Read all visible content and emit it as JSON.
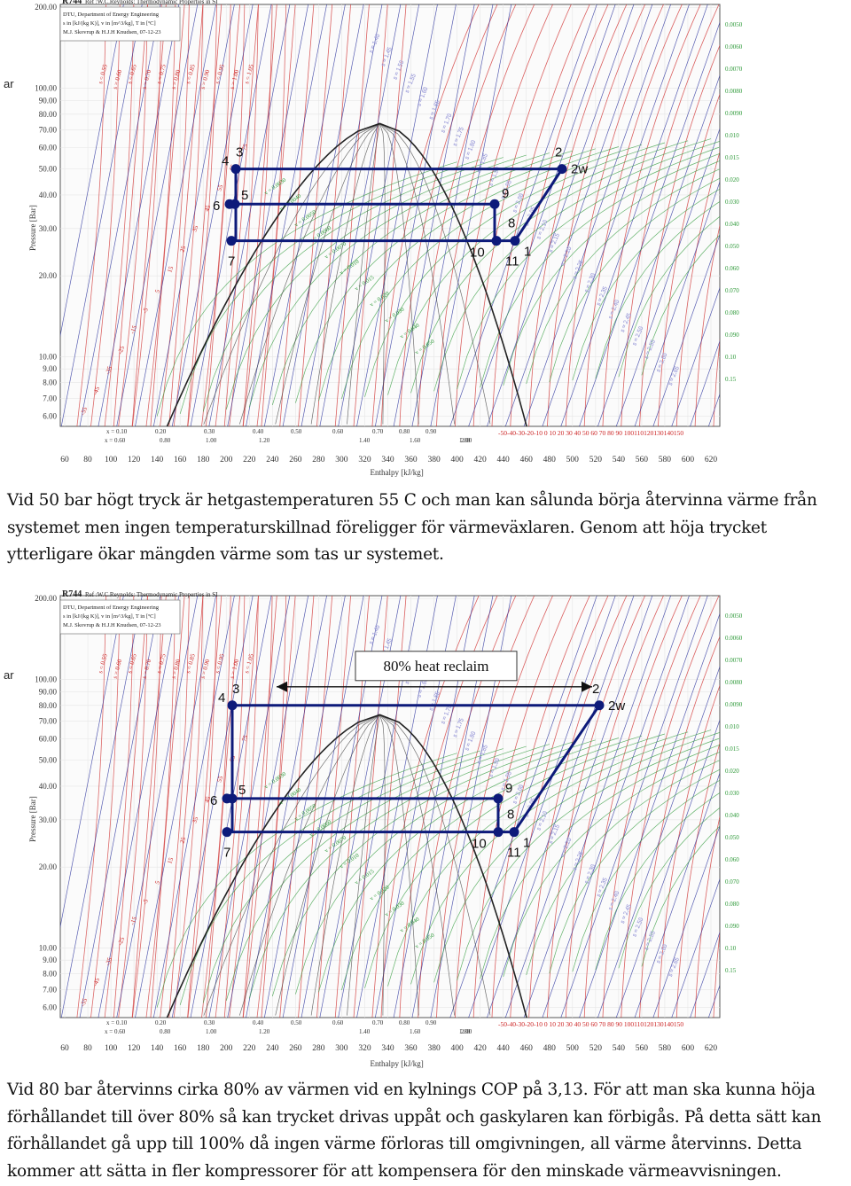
{
  "page": {
    "paragraph_1": "Vid 50 bar högt tryck är hetgastemperaturen 55 C och man kan sålunda börja återvinna värme från systemet men ingen temperaturskillnad föreligger för värmeväxlaren. Genom att höja trycket ytterligare ökar mängden värme som tas ur systemet.",
    "paragraph_2": "Vid 80 bar återvinns cirka 80% av värmen vid en kylnings COP på 3,13. För att man ska kunna höja förhållandet till över 80% så kan trycket drivas uppåt och gaskylaren kan förbigås. På detta sätt kan förhållandet gå upp till 100% då ingen värme förloras till omgivningen, all värme återvinns. Detta kommer att sätta in fler kompressorer för att kompensera för den minskade värmeavvisningen."
  },
  "colors": {
    "cycle": "#0d1a7a",
    "isotherm": "#d23a3a",
    "isentrope": "#222a9a",
    "isochore": "#2f9a3a",
    "quality": "#333333",
    "dome": "#222222",
    "annotation_red": "#cc2222",
    "annotation_green": "#2f9a3a"
  },
  "chart_common": {
    "header_lines": [
      "DTU, Department of Energy Engineering",
      "s in [kJ/(kg K)], v in [m^3/kg], T in [ºC]",
      "M.J. Skovrup & H.J.H Knudsen, 07-12-23"
    ],
    "y_axis_label": "Pressure [Bar]",
    "x_axis_label": "Enthalpy [kJ/kg]",
    "left_edge_label": "ar",
    "y_ticks": [
      "6.00",
      "7.00",
      "8.00",
      "9.00",
      "10.00",
      "20.00",
      "30.00",
      "40.00",
      "50.00",
      "60.00",
      "70.00",
      "80.00",
      "90.00",
      "100.00",
      "200.00"
    ],
    "x_ticks": [
      "60",
      "80",
      "100",
      "120",
      "140",
      "160",
      "180",
      "200",
      "220",
      "240",
      "260",
      "280",
      "300",
      "320",
      "340",
      "360",
      "380",
      "400",
      "420",
      "440",
      "460",
      "480",
      "500",
      "520",
      "540",
      "560",
      "580",
      "600",
      "620"
    ],
    "quality_labels": [
      "x = 0.10",
      "x = 0.60",
      "0.20",
      "0.80",
      "0.30",
      "1.00",
      "0.40",
      "1.20",
      "0.50",
      "0.60",
      "1.40",
      "0.70",
      "1.60",
      "0.80",
      "1.80",
      "0.90",
      "2.00"
    ],
    "temperature_scale_label": "-50-40-30-20-10  0  10  20  30  40  50  60  70  80  90 100110120130140150",
    "entropy_labels": [
      "s = 0.55",
      "s = 0.60",
      "s = 0.65",
      "s = 0.70",
      "s = 0.75",
      "s = 0.80",
      "s = 0.85",
      "s = 0.90",
      "s = 0.95",
      "s = 1.00",
      "s = 1.05"
    ],
    "volume_labels": [
      "0.0050",
      "0.0060",
      "0.0070",
      "0.0080",
      "0.0090",
      "0.010",
      "0.015",
      "0.020",
      "0.030",
      "0.040",
      "0.050",
      "0.060",
      "0.070",
      "0.080",
      "0.090",
      "0.10",
      "0.15"
    ],
    "mid_volume_labels": [
      "v = 0.0030",
      "v = 0.0040",
      "v = 0.0050",
      "v = 0.0060",
      "v = 0.0070",
      "v = 0.010",
      "v = 0.015",
      "v = 0.020",
      "v = 0.030",
      "v = 0.040",
      "v = 0.050"
    ],
    "superheat_entropy_labels": [
      "s = 1.40",
      "s = 1.45",
      "s = 1.50",
      "s = 1.55",
      "s = 1.60",
      "s = 1.65",
      "s = 1.70",
      "s = 1.75",
      "s = 1.80",
      "s = 1.85",
      "s = 1.90",
      "s = 1.95",
      "s = 2.00",
      "s = 2.05",
      "s = 2.10",
      "s = 2.15",
      "s = 2.20",
      "s = 2.25",
      "s = 2.30",
      "s = 2.35",
      "s = 2.40",
      "s = 2.45",
      "s = 2.50",
      "s = 2.55",
      "s = 2.60",
      "s = 2.65"
    ],
    "temperature_curve_labels": [
      "-55",
      "-45",
      "-35",
      "-25",
      "-15",
      "-5",
      "5",
      "15",
      "25",
      "35",
      "45",
      "55",
      "65",
      "75"
    ],
    "point_labels": {
      "p1": "1",
      "p2": "2",
      "p2w": "2w",
      "p3": "3",
      "p4": "4",
      "p5": "5",
      "p6": "6",
      "p7": "7",
      "p8": "8",
      "p9": "9",
      "p10": "10",
      "p11": "11"
    }
  },
  "charts": [
    {
      "id": "chart-1",
      "title_lines": [
        "R744",
        "Ref :W.C.Reynolds: Thermodynamic Properties in SI"
      ],
      "high_pressure_bar": 50,
      "annotation": "",
      "cycle_pressures_bar": {
        "high": 50,
        "intermediate": 37,
        "low": 27
      }
    },
    {
      "id": "chart-2",
      "title_lines": [
        "R744",
        "Ref :W.C.Reynolds: Thermodynamic Properties in SI"
      ],
      "high_pressure_bar": 80,
      "annotation": "80% heat reclaim",
      "cycle_pressures_bar": {
        "high": 80,
        "intermediate": 36,
        "low": 27
      }
    }
  ]
}
